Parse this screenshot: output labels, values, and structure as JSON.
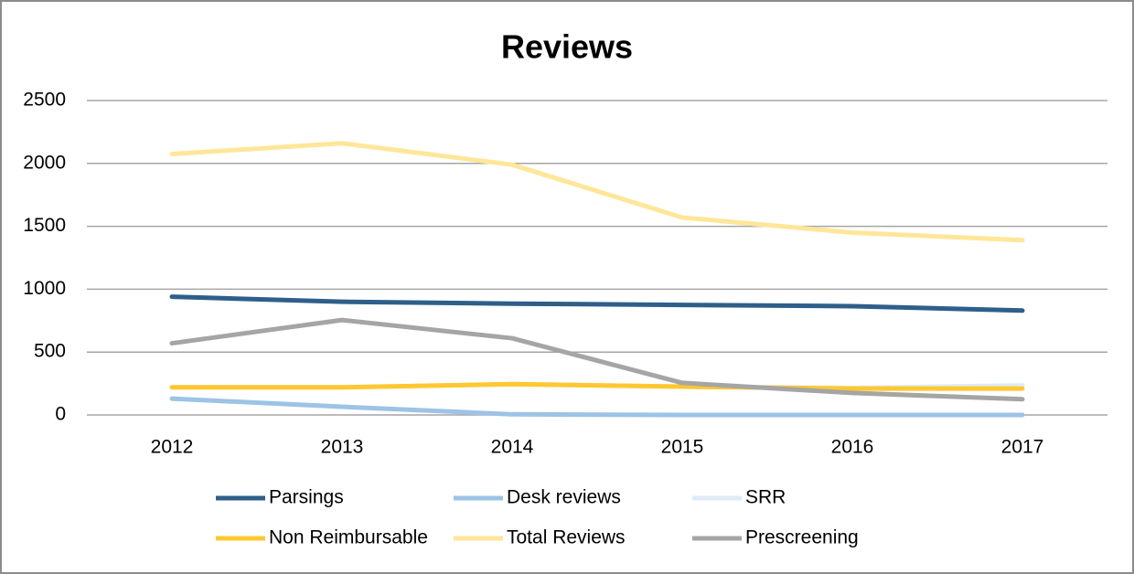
{
  "chart_data": {
    "type": "line",
    "title": "Reviews",
    "x": [
      "2012",
      "2013",
      "2014",
      "2015",
      "2016",
      "2017"
    ],
    "series": [
      {
        "name": "Parsings",
        "color": "#2e5f8a",
        "values": [
          940,
          900,
          885,
          875,
          865,
          830
        ]
      },
      {
        "name": "Desk reviews",
        "color": "#9dc3e6",
        "values": [
          130,
          65,
          5,
          0,
          0,
          0
        ]
      },
      {
        "name": "SRR",
        "color": "#deebf7",
        "values": [
          220,
          220,
          245,
          225,
          215,
          235
        ]
      },
      {
        "name": "Non Reimbursable",
        "color": "#ffc830",
        "values": [
          220,
          220,
          245,
          225,
          210,
          210
        ]
      },
      {
        "name": "Total Reviews",
        "color": "#ffe699",
        "values": [
          2075,
          2160,
          1990,
          1570,
          1450,
          1390
        ]
      },
      {
        "name": "Prescreening",
        "color": "#a5a5a5",
        "values": [
          570,
          755,
          610,
          255,
          175,
          125
        ]
      }
    ],
    "ylim": [
      0,
      2500
    ],
    "yticks": [
      0,
      500,
      1000,
      1500,
      2000,
      2500
    ],
    "grid": true
  }
}
